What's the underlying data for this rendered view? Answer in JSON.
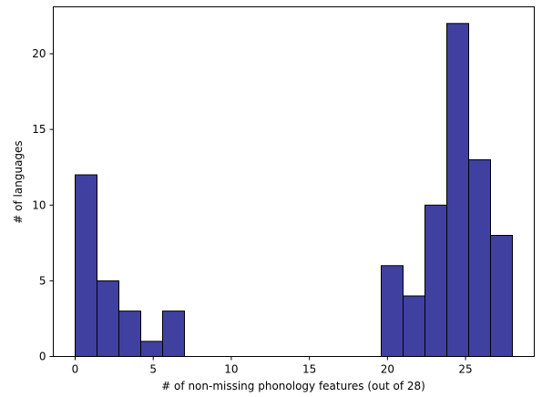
{
  "chart_data": {
    "type": "bar",
    "title": "",
    "xlabel": "# of non-missing phonology features (out of 28)",
    "ylabel": "# of languages",
    "xlim": [
      -1.4,
      29.4
    ],
    "ylim": [
      0,
      23.1
    ],
    "xticks": [
      0,
      5,
      10,
      15,
      20,
      25
    ],
    "yticks": [
      0,
      5,
      10,
      15,
      20
    ],
    "bin_width": 1.4,
    "bins": [
      {
        "start": 0.0,
        "value": 12
      },
      {
        "start": 1.4,
        "value": 5
      },
      {
        "start": 2.8,
        "value": 3
      },
      {
        "start": 4.2,
        "value": 1
      },
      {
        "start": 5.6,
        "value": 3
      },
      {
        "start": 19.6,
        "value": 6
      },
      {
        "start": 21.0,
        "value": 4
      },
      {
        "start": 22.4,
        "value": 10
      },
      {
        "start": 23.8,
        "value": 22
      },
      {
        "start": 25.2,
        "value": 13
      },
      {
        "start": 26.6,
        "value": 8
      }
    ],
    "bar_color": "#4040a1",
    "edge_color": "#000000",
    "grid": false,
    "legend": "none"
  }
}
